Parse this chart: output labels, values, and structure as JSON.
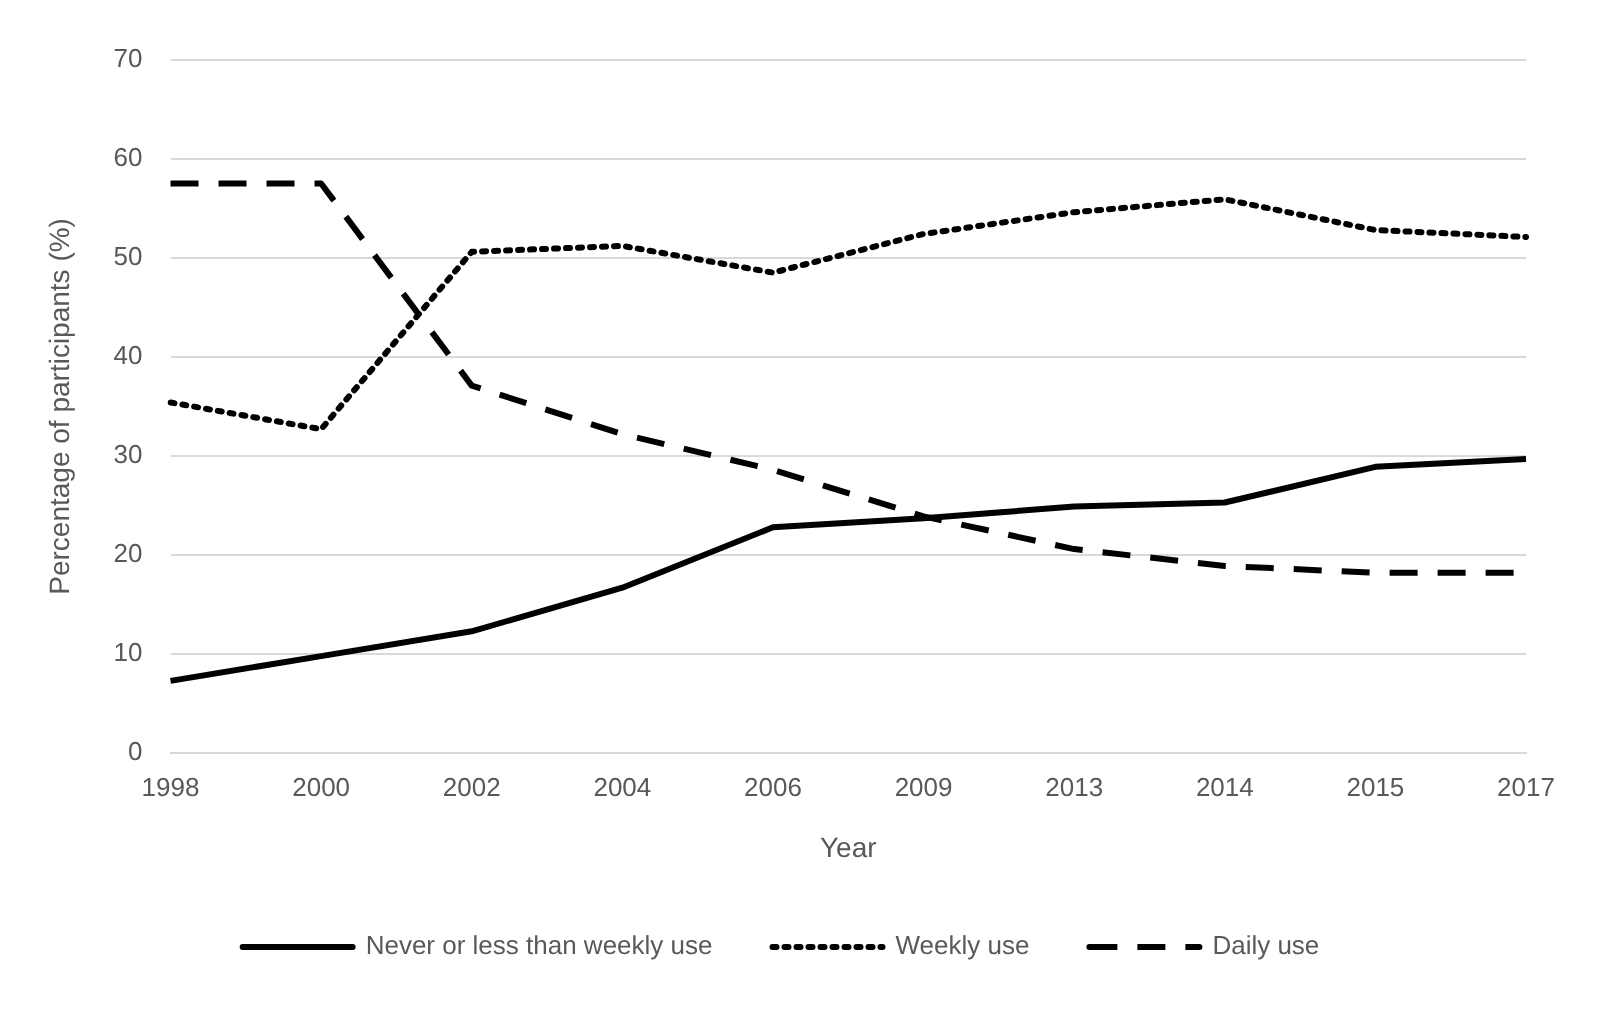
{
  "chart_data": {
    "type": "line",
    "xlabel": "Year",
    "ylabel": "Percentage of participants (%)",
    "categories": [
      "1998",
      "2000",
      "2002",
      "2004",
      "2006",
      "2009",
      "2013",
      "2014",
      "2015",
      "2017"
    ],
    "series": [
      {
        "name": "Never or less than weekly use",
        "color": "#000000",
        "line_style": "solid",
        "values": [
          7.3,
          9.8,
          12.3,
          16.7,
          22.8,
          23.7,
          24.9,
          25.3,
          28.9,
          29.7
        ]
      },
      {
        "name": "Weekly use",
        "color": "#000000",
        "line_style": "dotted",
        "values": [
          35.4,
          32.7,
          50.6,
          51.2,
          48.5,
          52.4,
          54.6,
          55.9,
          52.8,
          52.1
        ]
      },
      {
        "name": "Daily use",
        "color": "#000000",
        "line_style": "dashed",
        "values": [
          57.5,
          57.5,
          37.1,
          32.2,
          28.6,
          23.9,
          20.6,
          18.9,
          18.2,
          18.2
        ]
      }
    ],
    "ylim": [
      0,
      70
    ],
    "yticks": [
      0,
      10,
      20,
      30,
      40,
      50,
      60,
      70
    ],
    "grid": "y",
    "legend": "bottom",
    "marker": "none"
  }
}
